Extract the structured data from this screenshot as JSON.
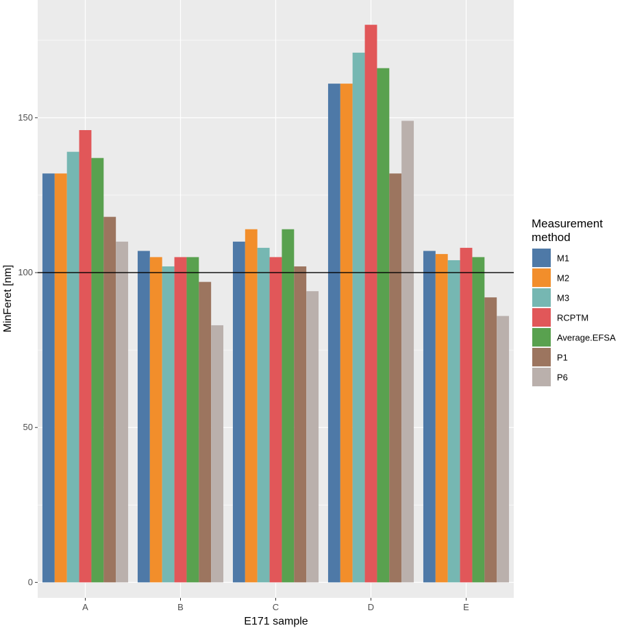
{
  "chart_data": {
    "type": "bar",
    "xlabel": "E171 sample",
    "ylabel": "MinFeret [nm]",
    "ylim": [
      -5,
      188
    ],
    "yticks": [
      0,
      50,
      100,
      150
    ],
    "ytick_labels": [
      "0",
      "50",
      "100",
      "150"
    ],
    "minor_yticks": [
      25,
      75,
      125,
      175
    ],
    "categories": [
      "A",
      "B",
      "C",
      "D",
      "E"
    ],
    "reference_line": 100,
    "legend": {
      "title_lines": [
        "Measurement",
        "method"
      ],
      "position": "right"
    },
    "series": [
      {
        "name": "M1",
        "color": "#4e79a7",
        "values": [
          132,
          107,
          110,
          161,
          107
        ]
      },
      {
        "name": "M2",
        "color": "#f28e2b",
        "values": [
          132,
          105,
          114,
          161,
          106
        ]
      },
      {
        "name": "M3",
        "color": "#76b7b2",
        "values": [
          139,
          102,
          108,
          171,
          104
        ]
      },
      {
        "name": "RCPTM",
        "color": "#e15759",
        "values": [
          146,
          105,
          105,
          180,
          108
        ]
      },
      {
        "name": "Average.EFSA",
        "color": "#59a14f",
        "values": [
          137,
          105,
          114,
          166,
          105
        ]
      },
      {
        "name": "P1",
        "color": "#9c755f",
        "values": [
          118,
          97,
          102,
          132,
          92
        ]
      },
      {
        "name": "P6",
        "color": "#bab0ac",
        "values": [
          110,
          83,
          94,
          149,
          86
        ]
      }
    ]
  }
}
